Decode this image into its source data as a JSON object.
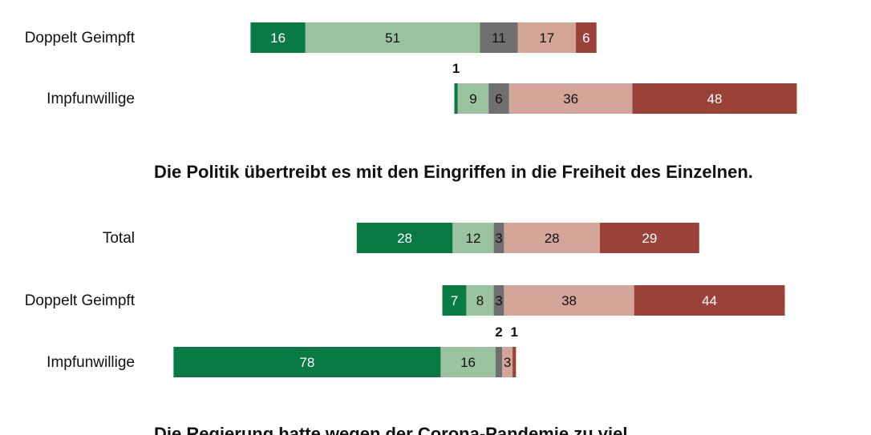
{
  "chart_data": {
    "type": "bar",
    "orientation": "horizontal",
    "stacking": "diverging",
    "colors": [
      "#0a7a45",
      "#9cc3a0",
      "#6f6f6f",
      "#d4a699",
      "#9a4237"
    ],
    "label_colors": [
      "#ffffff",
      "#111111",
      "#111111",
      "#111111",
      "#ffffff"
    ],
    "panels": [
      {
        "title": "",
        "rows": [
          {
            "label": "Doppelt Geimpft",
            "values": [
              16,
              51,
              11,
              17,
              6
            ]
          },
          {
            "label": "Impfunwillige",
            "values": [
              1,
              9,
              6,
              36,
              48
            ]
          }
        ]
      },
      {
        "title": "Die Politik übertreibt es mit den Eingriffen in die Freiheit des Einzelnen.",
        "rows": [
          {
            "label": "Total",
            "values": [
              28,
              12,
              3,
              28,
              29
            ]
          },
          {
            "label": "Doppelt Geimpft",
            "values": [
              7,
              8,
              3,
              38,
              44
            ]
          },
          {
            "label": "Impfunwillige",
            "values": [
              78,
              16,
              2,
              3,
              1
            ]
          }
        ]
      },
      {
        "title": "Die Regierung hatte wegen der Corona-Pandemie zu viel",
        "rows": []
      }
    ]
  }
}
